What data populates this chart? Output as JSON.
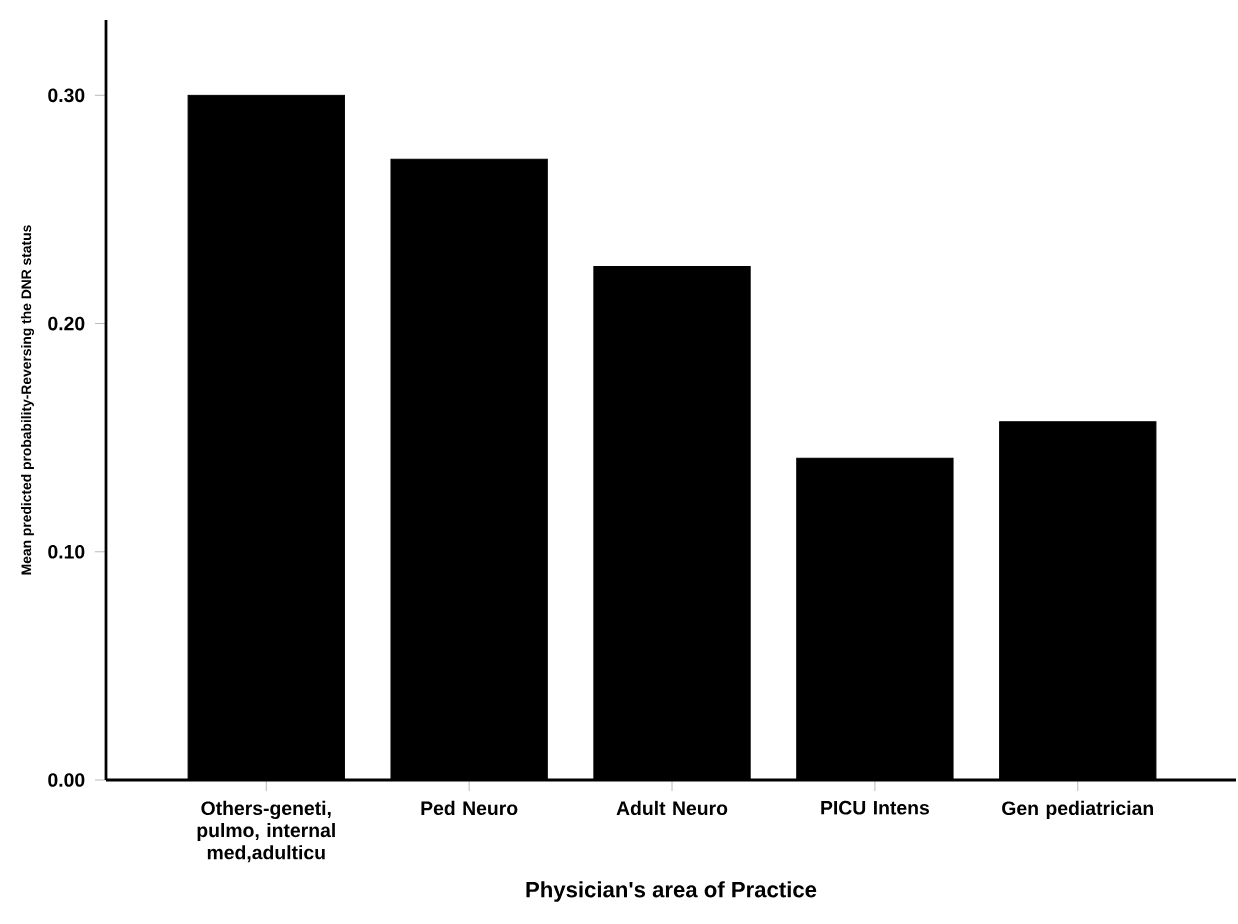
{
  "chart_data": {
    "type": "bar",
    "xlabel": "Physician's area of Practice",
    "ylabel": "Mean predicted probability-Reversing the DNR status",
    "categories": [
      "Others-geneti, pulmo, internal med,adulticu",
      "Ped Neuro",
      "Adult Neuro",
      "PICU Intens",
      "Gen pediatrician"
    ],
    "values": [
      0.3,
      0.272,
      0.225,
      0.141,
      0.157
    ],
    "color": "#000000",
    "ylim": [
      0,
      0.333
    ],
    "yticks": [
      {
        "value": 0,
        "label": "0.00"
      },
      {
        "value": 0.1,
        "label": "0.10"
      },
      {
        "value": 0.2,
        "label": "0.20"
      },
      {
        "value": 0.3,
        "label": "0.30"
      }
    ],
    "grid": false
  }
}
